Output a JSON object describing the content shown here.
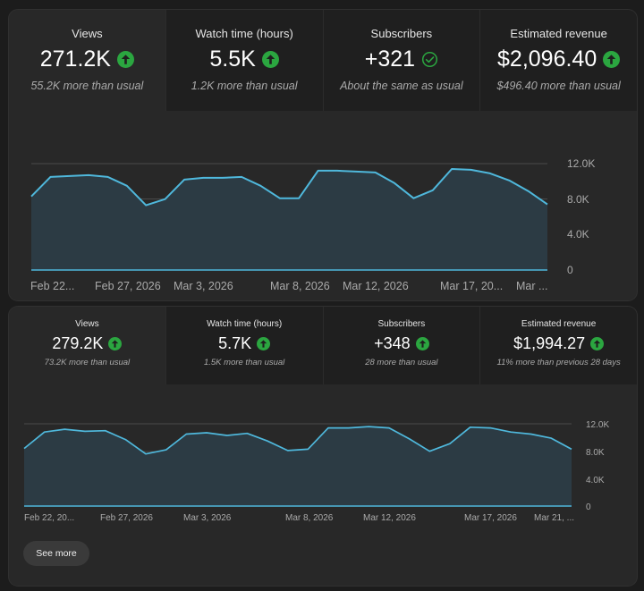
{
  "panels": [
    {
      "metrics": [
        {
          "label": "Views",
          "value": "271.2K",
          "badge": "up",
          "sub": "55.2K more than usual"
        },
        {
          "label": "Watch time (hours)",
          "value": "5.5K",
          "badge": "up",
          "sub": "1.2K more than usual"
        },
        {
          "label": "Subscribers",
          "value": "+321",
          "badge": "check",
          "sub": "About the same as usual"
        },
        {
          "label": "Estimated revenue",
          "value": "$2,096.40",
          "badge": "up",
          "sub": "$496.40 more than usual"
        }
      ],
      "chart": {
        "y_ticks": [
          "12.0K",
          "8.0K",
          "4.0K",
          "0"
        ],
        "x_ticks": [
          "Feb 22...",
          "Feb 27, 2026",
          "Mar 3, 2026",
          "Mar 8, 2026",
          "Mar 12, 2026",
          "Mar 17, 20...",
          "Mar ..."
        ]
      }
    },
    {
      "metrics": [
        {
          "label": "Views",
          "value": "279.2K",
          "badge": "up",
          "sub": "73.2K more than usual"
        },
        {
          "label": "Watch time (hours)",
          "value": "5.7K",
          "badge": "up",
          "sub": "1.5K more than usual"
        },
        {
          "label": "Subscribers",
          "value": "+348",
          "badge": "up",
          "sub": "28 more than usual"
        },
        {
          "label": "Estimated revenue",
          "value": "$1,994.27",
          "badge": "up",
          "sub": "11% more than previous 28 days"
        }
      ],
      "chart": {
        "y_ticks": [
          "12.0K",
          "8.0K",
          "4.0K",
          "0"
        ],
        "x_ticks": [
          "Feb 22, 20...",
          "Feb 27, 2026",
          "Mar 3, 2026",
          "Mar 8, 2026",
          "Mar 12, 2026",
          "Mar 17, 2026",
          "Mar 21, ..."
        ]
      },
      "see_more_label": "See more"
    }
  ],
  "colors": {
    "line": "#4fb8dc",
    "fill": "#2c3b44",
    "up": "#2ba640",
    "grid": "#4a4a4a"
  },
  "chart_data": [
    {
      "type": "area",
      "series": [
        {
          "values": [
            8300,
            10500,
            10600,
            10700,
            10500,
            9500,
            7300,
            8000,
            10200,
            10400,
            10400,
            10500,
            9500,
            8100,
            8100,
            11200,
            11200,
            11100,
            11000,
            9800,
            8100,
            9000,
            11400,
            11300,
            10900,
            10100,
            8900,
            7400
          ]
        }
      ],
      "ylim": [
        0,
        12000
      ],
      "y_ticks": [
        "12.0K",
        "8.0K",
        "4.0K",
        "0"
      ],
      "x_ticks": [
        "Feb 22...",
        "Feb 27, 2026",
        "Mar 3, 2026",
        "Mar 8, 2026",
        "Mar 12, 2026",
        "Mar 17, 20...",
        "Mar ..."
      ]
    },
    {
      "type": "area",
      "series": [
        {
          "values": [
            8400,
            10800,
            11200,
            10900,
            11000,
            9700,
            7600,
            8200,
            10500,
            10700,
            10300,
            10600,
            9500,
            8100,
            8300,
            11400,
            11400,
            11600,
            11400,
            9800,
            8000,
            9100,
            11500,
            11400,
            10800,
            10500,
            9900,
            8300
          ]
        }
      ],
      "ylim": [
        0,
        12000
      ],
      "y_ticks": [
        "12.0K",
        "8.0K",
        "4.0K",
        "0"
      ],
      "x_ticks": [
        "Feb 22, 20...",
        "Feb 27, 2026",
        "Mar 3, 2026",
        "Mar 8, 2026",
        "Mar 12, 2026",
        "Mar 17, 2026",
        "Mar 21, ..."
      ]
    }
  ]
}
